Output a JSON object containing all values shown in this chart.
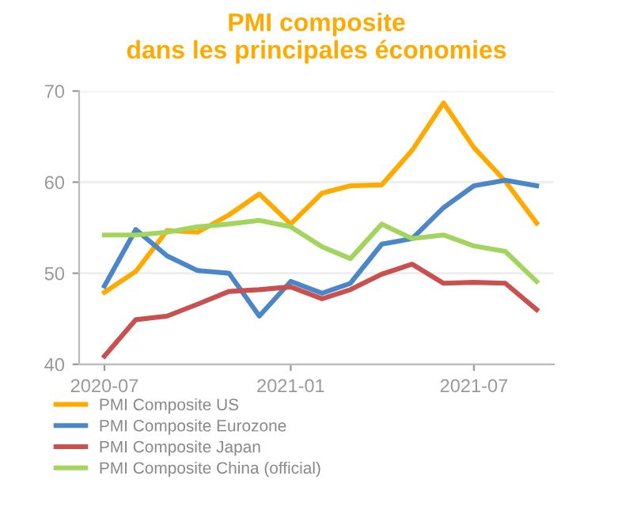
{
  "chart_data": {
    "type": "line",
    "title": "PMI composite\ndans les principales économies",
    "x": [
      "2020-07",
      "2020-08",
      "2020-09",
      "2020-10",
      "2020-11",
      "2020-12",
      "2021-01",
      "2021-02",
      "2021-03",
      "2021-04",
      "2021-05",
      "2021-06",
      "2021-07",
      "2021-08",
      "2021-09"
    ],
    "series": [
      {
        "name": "PMI Composite US",
        "color": "#ffaa00",
        "values": [
          47.9,
          50.2,
          54.7,
          54.5,
          56.4,
          58.7,
          55.4,
          58.8,
          59.6,
          59.7,
          63.5,
          68.7,
          63.8,
          60.1,
          55.5
        ]
      },
      {
        "name": "PMI Composite Eurozone",
        "color": "#4a86c8",
        "values": [
          48.6,
          54.8,
          51.9,
          50.3,
          50.0,
          45.3,
          49.1,
          47.8,
          48.9,
          53.2,
          53.8,
          57.2,
          59.6,
          60.2,
          59.6
        ]
      },
      {
        "name": "PMI Composite Japan",
        "color": "#c8504e",
        "values": [
          40.9,
          44.9,
          45.3,
          46.6,
          48.0,
          48.2,
          48.5,
          47.2,
          48.2,
          49.9,
          51.0,
          48.9,
          49.0,
          48.9,
          46.0
        ]
      },
      {
        "name": "PMI Composite China (official)",
        "color": "#a2d45e",
        "values": [
          54.2,
          54.2,
          54.5,
          55.1,
          55.4,
          55.8,
          55.1,
          52.9,
          51.6,
          55.4,
          53.8,
          54.2,
          53.0,
          52.4,
          49.1
        ]
      }
    ],
    "xlim": [
      "2020-06-06",
      "2021-09-18"
    ],
    "xticks": [
      {
        "value": "2020-07-01",
        "label": "2020-07"
      },
      {
        "value": "2021-01-01",
        "label": "2021-01"
      },
      {
        "value": "2021-07-01",
        "label": "2021-07"
      }
    ],
    "ylim": [
      40,
      70
    ],
    "yticks": [
      40,
      50,
      60,
      70
    ],
    "grid": "y",
    "legend": "bottom",
    "marker": "none",
    "line_style": "solid"
  }
}
